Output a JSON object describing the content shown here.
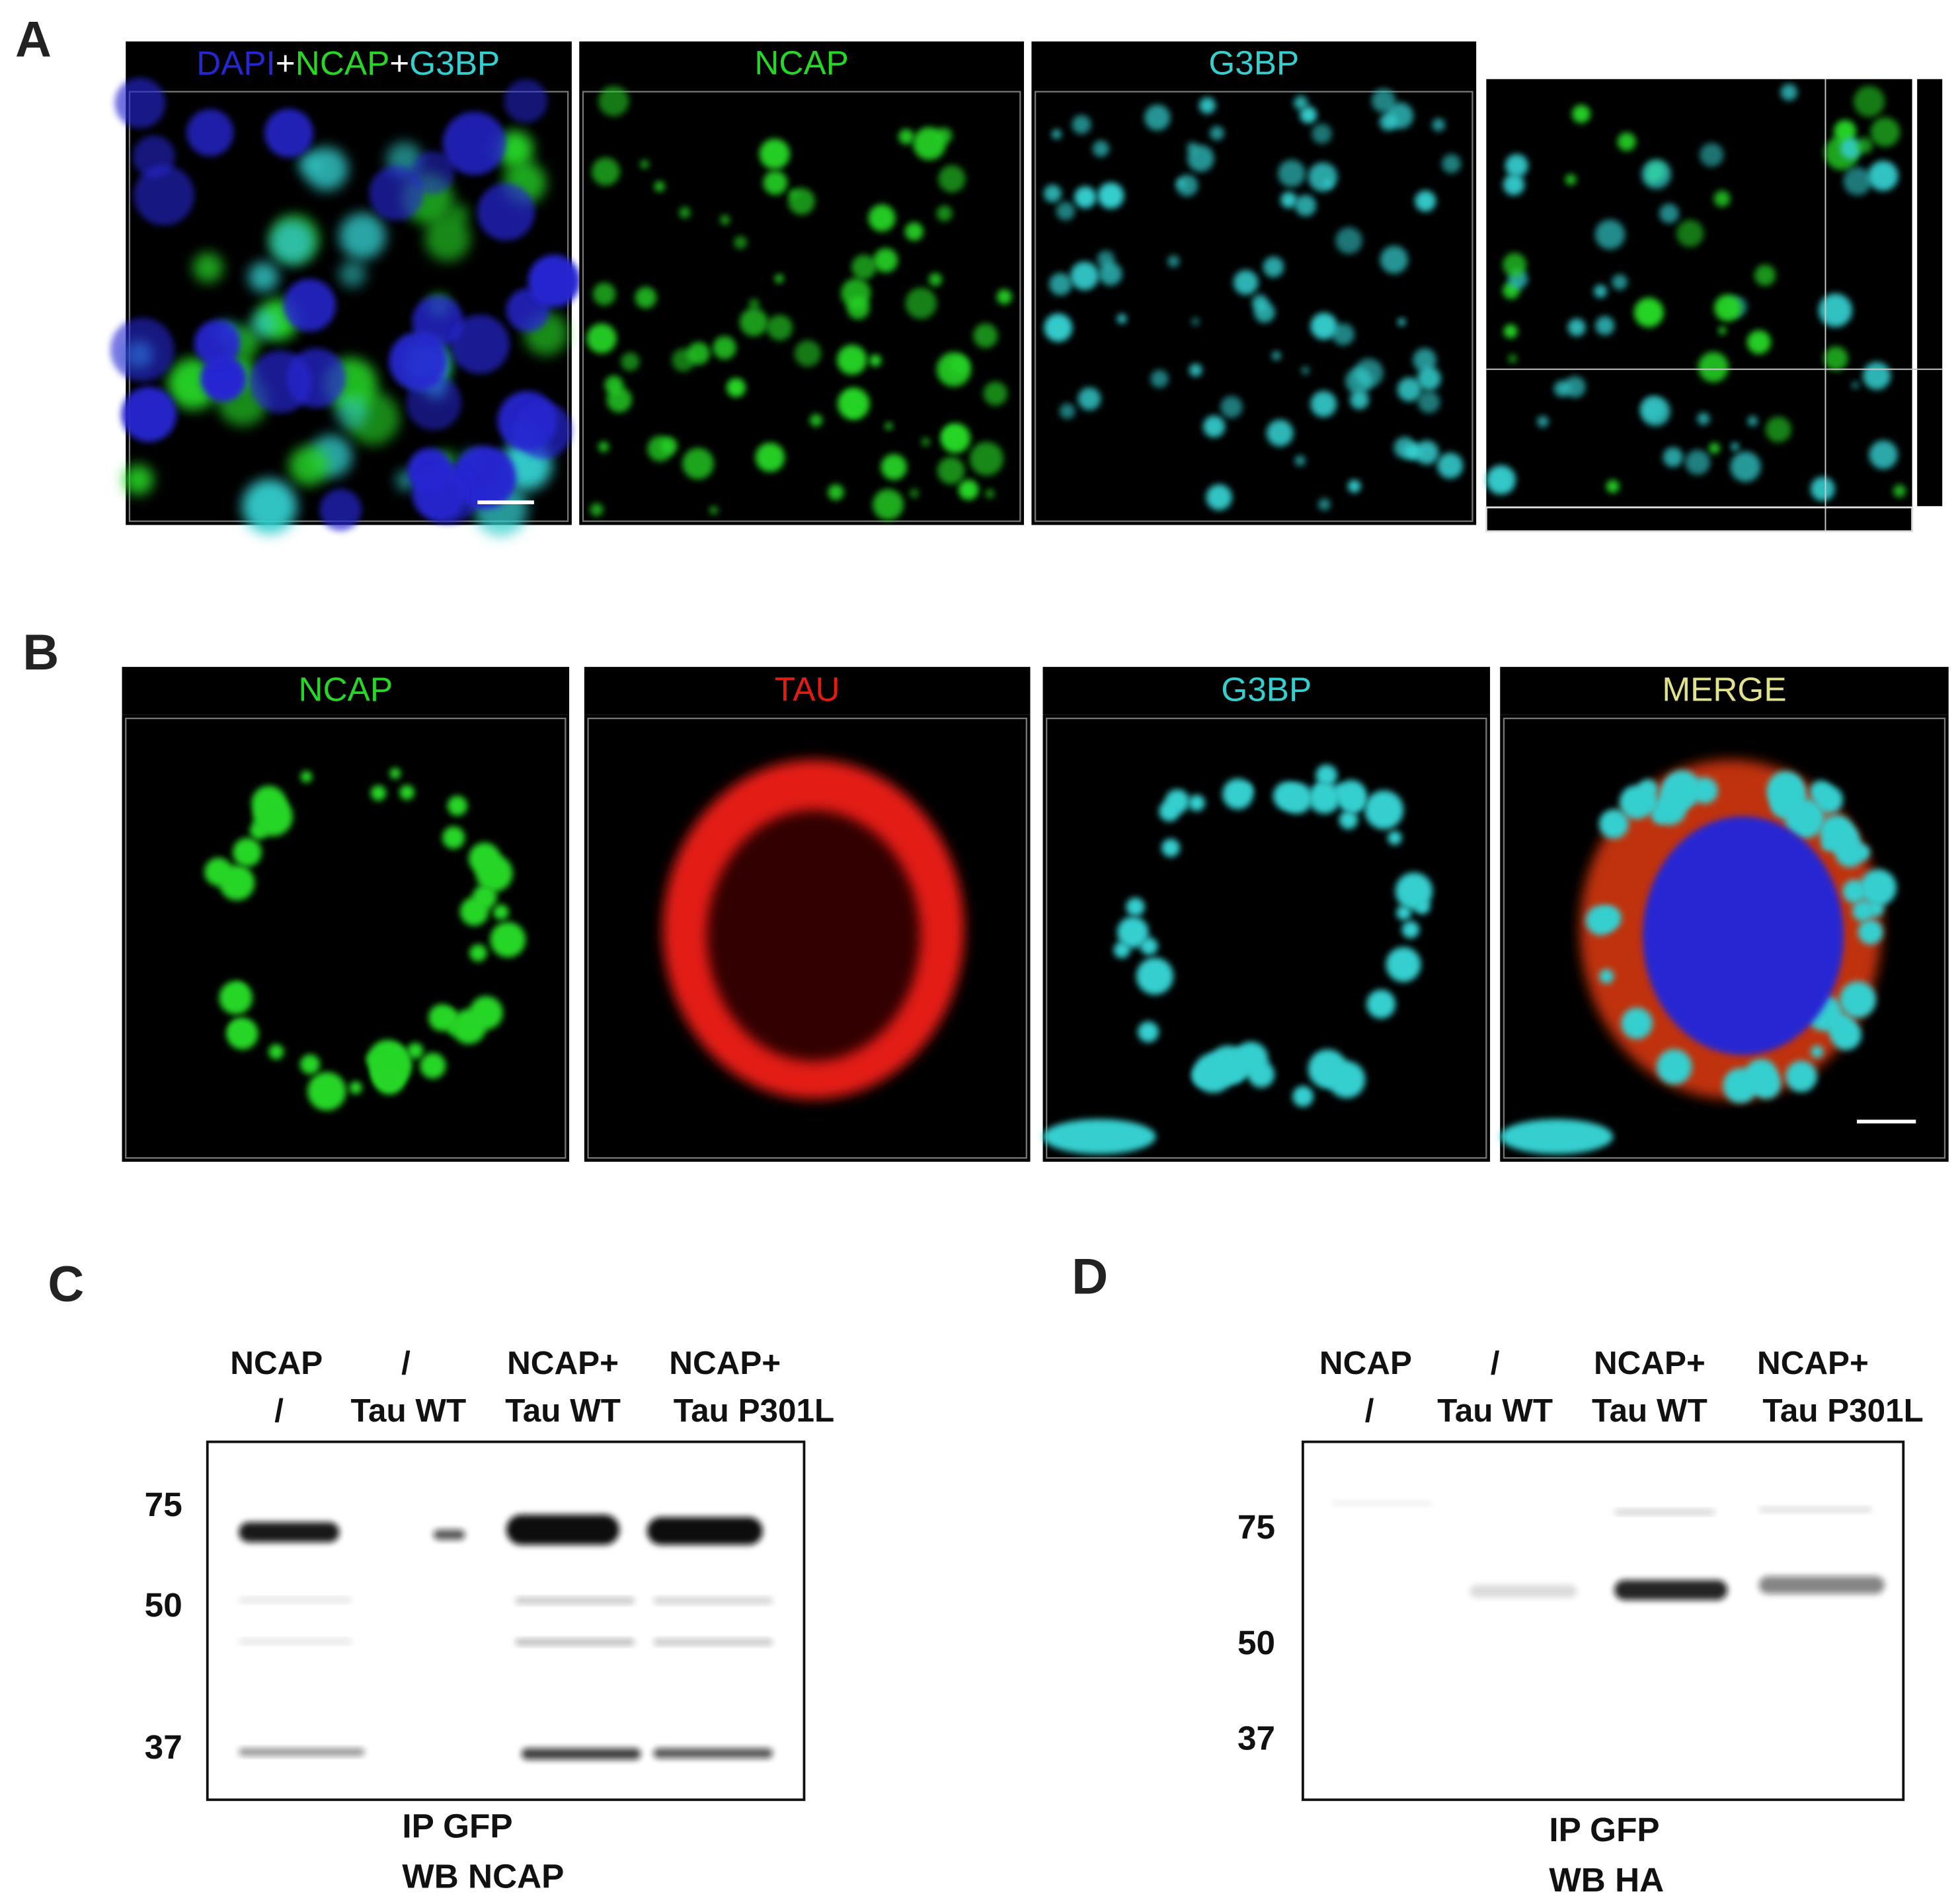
{
  "panel_a": {
    "label": "A",
    "merge_title": [
      "DAPI",
      "+",
      "NCAP",
      "+",
      "G3BP"
    ],
    "titles": [
      "NCAP",
      "G3BP"
    ]
  },
  "panel_b": {
    "label": "B",
    "titles": [
      "NCAP",
      "TAU",
      "G3BP",
      "MERGE"
    ]
  },
  "panel_c": {
    "label": "C",
    "lanes": [
      [
        "NCAP",
        "/"
      ],
      [
        "/",
        "Tau WT"
      ],
      [
        "NCAP+",
        "Tau WT"
      ],
      [
        "NCAP+",
        "Tau P301L"
      ]
    ],
    "markers": [
      75,
      50,
      37
    ],
    "caption": [
      "IP GFP",
      "WB NCAP"
    ]
  },
  "panel_d": {
    "label": "D",
    "lanes": [
      [
        "NCAP",
        "/"
      ],
      [
        "/",
        "Tau WT"
      ],
      [
        "NCAP+",
        "Tau WT"
      ],
      [
        "NCAP+",
        "Tau P301L"
      ]
    ],
    "markers": [
      75,
      50,
      37
    ],
    "caption": [
      "IP GFP",
      "WB HA"
    ]
  }
}
